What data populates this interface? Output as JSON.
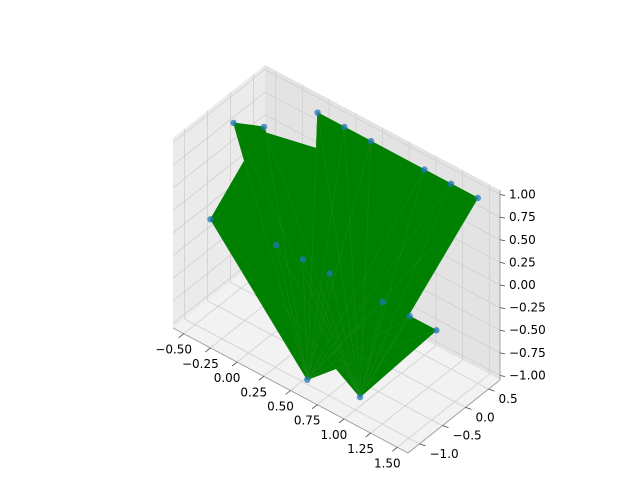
{
  "chart_data": {
    "type": "surface3d",
    "title": "",
    "xlabel": "",
    "ylabel": "",
    "zlabel": "",
    "grid": true,
    "colors": {
      "pane_left": "#ebebeb",
      "pane_right": "#e3e3e3",
      "pane_floor": "#f2f2f2",
      "grid": "#cfcfcf",
      "edges": "#999999",
      "surface": "#008000",
      "points": "#1f77b4"
    },
    "x_ticks": [
      "−0.50",
      "−0.25",
      "0.00",
      "0.25",
      "0.50",
      "0.75",
      "1.00",
      "1.25",
      "1.50"
    ],
    "y_ticks": [
      "−1.0",
      "−0.5",
      "0.0",
      "0.5"
    ],
    "z_ticks": [
      "−1.00",
      "−0.75",
      "−0.50",
      "−0.25",
      "0.00",
      "0.25",
      "0.50",
      "0.75",
      "1.00"
    ],
    "xlim": [
      -0.6,
      1.6
    ],
    "ylim": [
      -1.25,
      0.75
    ],
    "zlim": [
      -1.05,
      1.05
    ],
    "series": [
      {
        "points": [
          [
            0.0,
            0.5,
            1.0
          ],
          [
            0.25,
            0.5,
            1.0
          ],
          [
            0.5,
            0.5,
            1.0
          ],
          [
            1.0,
            0.5,
            1.0
          ],
          [
            1.25,
            0.5,
            1.0
          ],
          [
            1.5,
            0.5,
            1.0
          ],
          [
            -0.4,
            -0.4,
            1.0
          ],
          [
            -0.2,
            -0.2,
            1.0
          ],
          [
            -0.55,
            -0.55,
            -0.1
          ],
          [
            0.0,
            -0.4,
            -0.1
          ],
          [
            0.25,
            -0.4,
            -0.1
          ],
          [
            0.5,
            -0.4,
            -0.1
          ],
          [
            1.0,
            -0.4,
            -0.1
          ],
          [
            1.25,
            -0.4,
            -0.1
          ],
          [
            1.5,
            -0.4,
            -0.1
          ],
          [
            0.55,
            -1.0,
            -1.0
          ],
          [
            1.0,
            -0.9,
            -0.95
          ]
        ]
      }
    ]
  }
}
